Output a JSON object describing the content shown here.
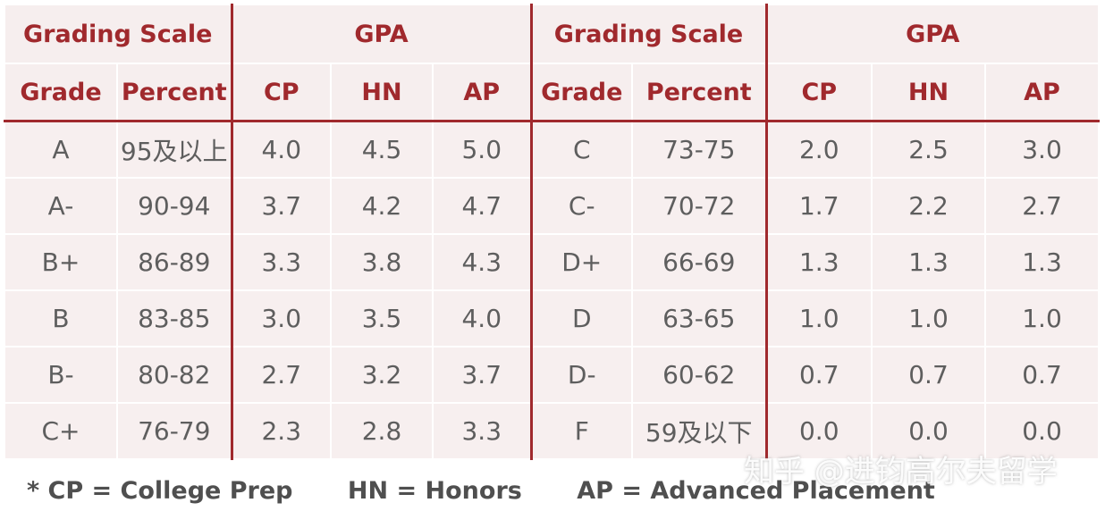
{
  "header": {
    "left_grading_scale": "Grading Scale",
    "left_gpa": "GPA",
    "right_grading_scale": "Grading Scale",
    "right_gpa": "GPA"
  },
  "columns": [
    "Grade",
    "Percent",
    "CP",
    "HN",
    "AP",
    "Grade",
    "Percent",
    "CP",
    "HN",
    "AP"
  ],
  "rows": [
    [
      "A",
      "95及以上",
      "4.0",
      "4.5",
      "5.0",
      "C",
      "73-75",
      "2.0",
      "2.5",
      "3.0"
    ],
    [
      "A-",
      "90-94",
      "3.7",
      "4.2",
      "4.7",
      "C-",
      "70-72",
      "1.7",
      "2.2",
      "2.7"
    ],
    [
      "B+",
      "86-89",
      "3.3",
      "3.8",
      "4.3",
      "D+",
      "66-69",
      "1.3",
      "1.3",
      "1.3"
    ],
    [
      "B",
      "83-85",
      "3.0",
      "3.5",
      "4.0",
      "D",
      "63-65",
      "1.0",
      "1.0",
      "1.0"
    ],
    [
      "B-",
      "80-82",
      "2.7",
      "3.2",
      "3.7",
      "D-",
      "60-62",
      "0.7",
      "0.7",
      "0.7"
    ],
    [
      "C+",
      "76-79",
      "2.3",
      "2.8",
      "3.3",
      "F",
      "59及以下",
      "0.0",
      "0.0",
      "0.0"
    ]
  ],
  "footnote": {
    "cp": "* CP = College Prep",
    "hn": "HN = Honors",
    "ap": "AP = Advanced Placement"
  },
  "watermark": "知乎 @进钧高尔夫留学",
  "colors": {
    "header_text": "#a0292d",
    "divider": "#a0292d",
    "cell_bg": "#f7efef",
    "body_text": "#5e5e5e"
  }
}
